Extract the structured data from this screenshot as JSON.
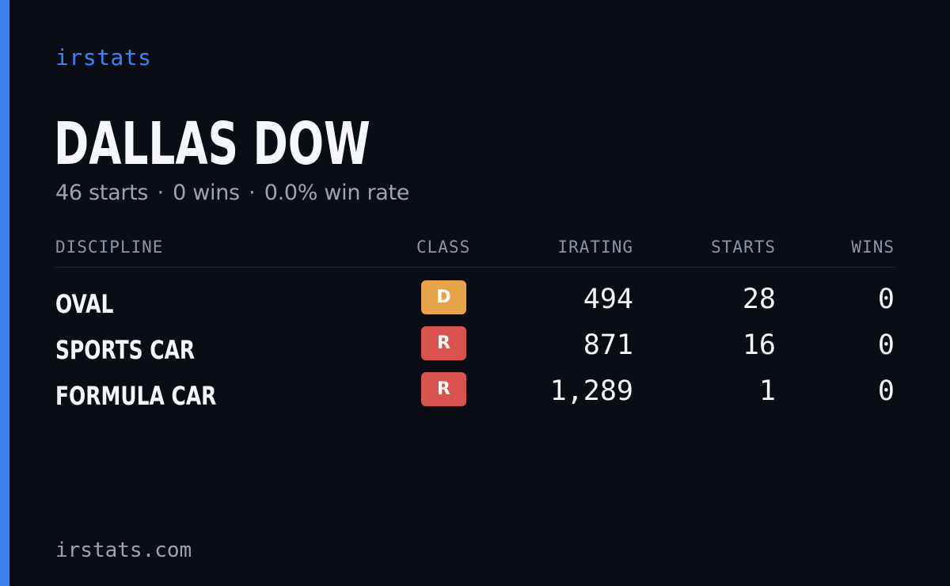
{
  "brand": "irstats",
  "player": {
    "name": "DALLAS DOW",
    "starts_text": "46 starts",
    "separator": "·",
    "wins_text": "0 wins",
    "win_rate_text": "0.0% win rate"
  },
  "table": {
    "headers": {
      "discipline": "DISCIPLINE",
      "class": "CLASS",
      "irating": "IRATING",
      "starts": "STARTS",
      "wins": "WINS"
    },
    "rows": [
      {
        "discipline": "OVAL",
        "class": "D",
        "class_color": "#e8a44a",
        "irating": "494",
        "starts": "28",
        "wins": "0"
      },
      {
        "discipline": "SPORTS CAR",
        "class": "R",
        "class_color": "#d9534f",
        "irating": "871",
        "starts": "16",
        "wins": "0"
      },
      {
        "discipline": "FORMULA CAR",
        "class": "R",
        "class_color": "#d9534f",
        "irating": "1,289",
        "starts": "1",
        "wins": "0"
      }
    ]
  },
  "footer": "irstats.com",
  "colors": {
    "accent": "#3b82f6",
    "background": "#0a0d14",
    "muted_text": "#9aa5b4",
    "primary_text": "#f5f7fa"
  }
}
